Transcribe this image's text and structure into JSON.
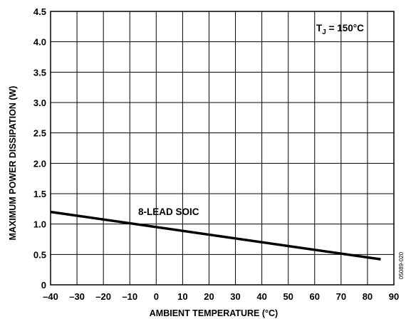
{
  "chart_data": {
    "type": "line",
    "xlabel": "AMBIENT TEMPERATURE (°C)",
    "ylabel": "MAXIMUM POWER DISSIPATION (W)",
    "xlim": [
      -40,
      90
    ],
    "ylim": [
      0,
      4.5
    ],
    "x_ticks": [
      "–40",
      "–30",
      "–20",
      "–10",
      "0",
      "10",
      "20",
      "30",
      "40",
      "50",
      "60",
      "70",
      "80",
      "90"
    ],
    "y_ticks": [
      "0",
      "0.5",
      "1.0",
      "1.5",
      "2.0",
      "2.5",
      "3.0",
      "3.5",
      "4.0",
      "4.5"
    ],
    "grid": true,
    "series": [
      {
        "name": "8-LEAD SOIC",
        "x": [
          -40,
          85
        ],
        "y": [
          1.2,
          0.42
        ]
      }
    ],
    "annotations": {
      "tj_main": "T",
      "tj_sub": "J",
      "tj_rest": " = 150°C",
      "series_label": "8-LEAD SOIC"
    },
    "figure_code": "05089-020"
  }
}
